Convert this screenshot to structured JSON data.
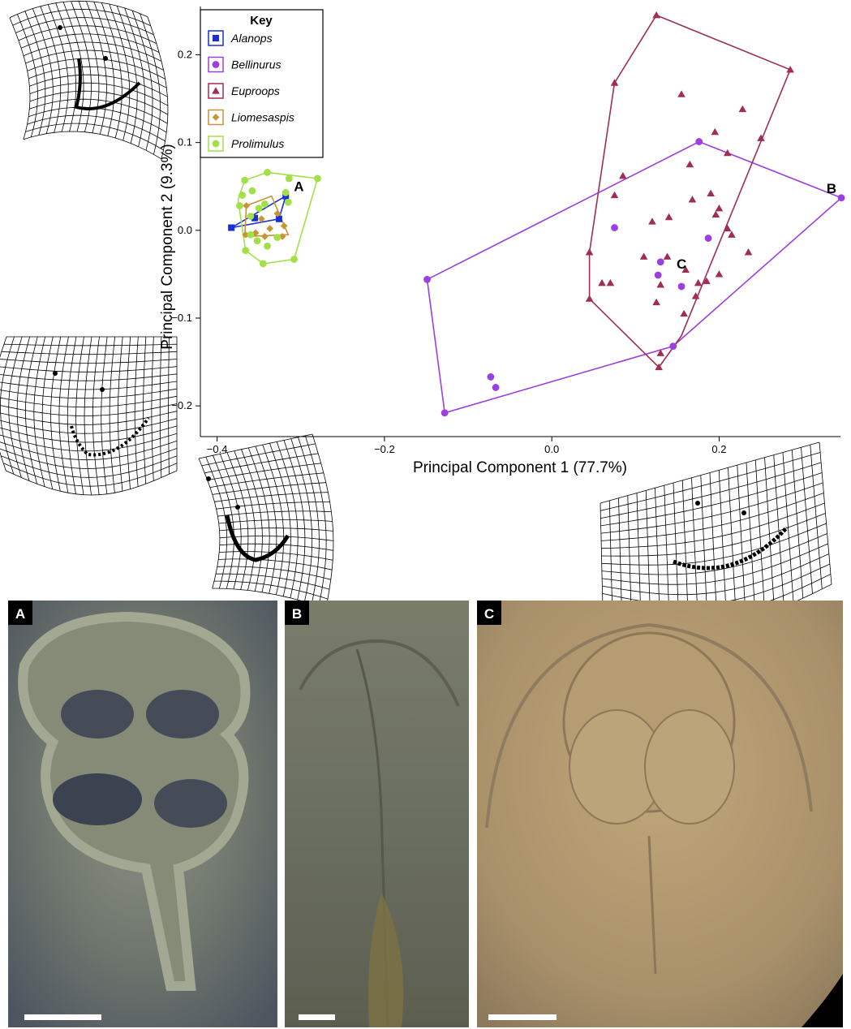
{
  "chart_data": {
    "type": "scatter",
    "title": "",
    "xlabel": "Principal Component 1 (77.7%)",
    "ylabel": "Principal Component 2 (9.3%)",
    "xlim": [
      -0.42,
      0.345
    ],
    "ylim": [
      -0.235,
      0.255
    ],
    "xticks": [
      -0.4,
      -0.2,
      0.0,
      0.2
    ],
    "xtick_labels": [
      "−0.4",
      "−0.2",
      "0.0",
      "0.2"
    ],
    "yticks": [
      -0.2,
      -0.1,
      0.0,
      0.1,
      0.2
    ],
    "ytick_labels": [
      "−0.2",
      "−0.1",
      "0.0",
      "0.1",
      "0.2"
    ],
    "grid": false,
    "legend": {
      "title": "Key",
      "placement": "top-left"
    },
    "series": [
      {
        "name": "Alanops",
        "color": "#1a2fd6",
        "marker": "square",
        "points": [
          [
            -0.383,
            0.003
          ],
          [
            -0.355,
            0.014
          ],
          [
            -0.318,
            0.039
          ],
          [
            -0.326,
            0.013
          ]
        ],
        "hull": [
          [
            -0.383,
            0.003
          ],
          [
            -0.318,
            0.039
          ],
          [
            -0.326,
            0.013
          ]
        ]
      },
      {
        "name": "Bellinurus",
        "color": "#9b3fe0",
        "marker": "circle",
        "points": [
          [
            0.075,
            0.003
          ],
          [
            0.176,
            0.101
          ],
          [
            0.346,
            0.037
          ],
          [
            -0.149,
            -0.056
          ],
          [
            -0.128,
            -0.208
          ],
          [
            -0.073,
            -0.167
          ],
          [
            -0.067,
            -0.179
          ],
          [
            0.13,
            -0.036
          ],
          [
            0.127,
            -0.051
          ],
          [
            0.155,
            -0.064
          ],
          [
            0.187,
            -0.009
          ],
          [
            0.145,
            -0.132
          ]
        ],
        "hull": [
          [
            0.176,
            0.101
          ],
          [
            0.346,
            0.037
          ],
          [
            0.145,
            -0.132
          ],
          [
            -0.128,
            -0.208
          ],
          [
            -0.149,
            -0.056
          ]
        ]
      },
      {
        "name": "Euproops",
        "color": "#9e2f52",
        "marker": "triangle",
        "points": [
          [
            0.125,
            0.245
          ],
          [
            0.075,
            0.168
          ],
          [
            0.285,
            0.183
          ],
          [
            0.045,
            -0.025
          ],
          [
            0.045,
            -0.078
          ],
          [
            0.128,
            -0.156
          ],
          [
            0.155,
            0.155
          ],
          [
            0.228,
            0.138
          ],
          [
            0.25,
            0.105
          ],
          [
            0.085,
            0.062
          ],
          [
            0.195,
            0.112
          ],
          [
            0.165,
            0.075
          ],
          [
            0.21,
            0.088
          ],
          [
            0.075,
            0.04
          ],
          [
            0.14,
            0.015
          ],
          [
            0.2,
            0.025
          ],
          [
            0.215,
            -0.005
          ],
          [
            0.12,
            0.01
          ],
          [
            0.06,
            -0.06
          ],
          [
            0.07,
            -0.06
          ],
          [
            0.11,
            -0.03
          ],
          [
            0.138,
            -0.03
          ],
          [
            0.16,
            -0.045
          ],
          [
            0.13,
            -0.062
          ],
          [
            0.125,
            -0.082
          ],
          [
            0.175,
            -0.06
          ],
          [
            0.185,
            -0.058
          ],
          [
            0.2,
            -0.05
          ],
          [
            0.172,
            -0.075
          ],
          [
            0.158,
            -0.095
          ],
          [
            0.13,
            -0.14
          ],
          [
            0.19,
            0.042
          ],
          [
            0.21,
            0.002
          ],
          [
            0.196,
            0.018
          ],
          [
            0.168,
            0.035
          ],
          [
            0.235,
            -0.025
          ]
        ],
        "hull": [
          [
            0.125,
            0.245
          ],
          [
            0.285,
            0.183
          ],
          [
            0.155,
            -0.12
          ],
          [
            0.128,
            -0.156
          ],
          [
            0.045,
            -0.078
          ],
          [
            0.045,
            -0.025
          ],
          [
            0.075,
            0.168
          ]
        ]
      },
      {
        "name": "Liomesaspis",
        "color": "#c8943a",
        "marker": "diamond",
        "points": [
          [
            -0.365,
            0.028
          ],
          [
            -0.347,
            0.013
          ],
          [
            -0.337,
            0.002
          ],
          [
            -0.322,
            -0.007
          ],
          [
            -0.343,
            -0.007
          ],
          [
            -0.354,
            -0.003
          ],
          [
            -0.366,
            -0.005
          ],
          [
            -0.328,
            0.019
          ],
          [
            -0.32,
            0.005
          ]
        ],
        "hull": [
          [
            -0.365,
            0.028
          ],
          [
            -0.335,
            0.039
          ],
          [
            -0.315,
            -0.005
          ],
          [
            -0.367,
            -0.007
          ]
        ]
      },
      {
        "name": "Prolimulus",
        "color": "#a3e048",
        "marker": "circle",
        "points": [
          [
            -0.367,
            0.057
          ],
          [
            -0.34,
            0.066
          ],
          [
            -0.314,
            0.059
          ],
          [
            -0.28,
            0.059
          ],
          [
            -0.366,
            -0.023
          ],
          [
            -0.345,
            -0.038
          ],
          [
            -0.308,
            -0.033
          ],
          [
            -0.358,
            0.045
          ],
          [
            -0.35,
            0.025
          ],
          [
            -0.318,
            0.043
          ],
          [
            -0.315,
            0.032
          ],
          [
            -0.36,
            0.016
          ],
          [
            -0.373,
            0.028
          ],
          [
            -0.328,
            -0.008
          ],
          [
            -0.34,
            -0.018
          ],
          [
            -0.352,
            -0.012
          ],
          [
            -0.36,
            -0.005
          ],
          [
            -0.343,
            0.03
          ],
          [
            -0.37,
            0.04
          ]
        ],
        "hull": [
          [
            -0.367,
            0.057
          ],
          [
            -0.34,
            0.066
          ],
          [
            -0.28,
            0.059
          ],
          [
            -0.308,
            -0.033
          ],
          [
            -0.345,
            -0.038
          ],
          [
            -0.366,
            -0.023
          ],
          [
            -0.375,
            0.035
          ]
        ]
      }
    ],
    "annotations": [
      {
        "text": "A",
        "x": -0.318,
        "y": 0.039
      },
      {
        "text": "B",
        "x": 0.346,
        "y": 0.037
      },
      {
        "text": "C",
        "x": 0.155,
        "y": -0.064
      }
    ]
  },
  "photos": [
    {
      "letter": "A"
    },
    {
      "letter": "B"
    },
    {
      "letter": "C"
    }
  ]
}
